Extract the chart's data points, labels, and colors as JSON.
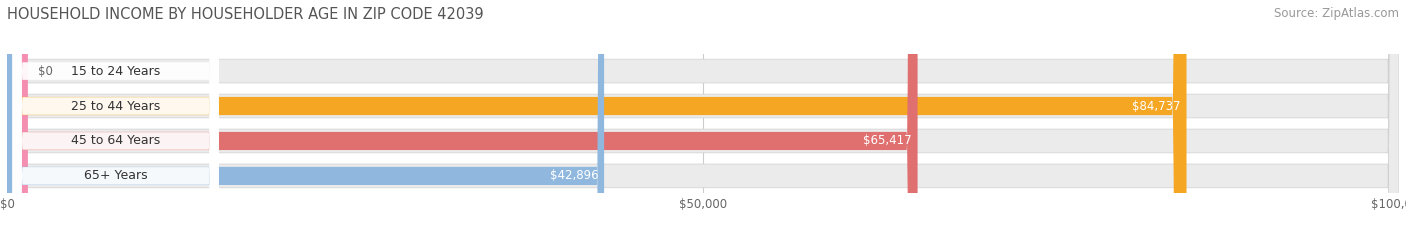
{
  "title": "HOUSEHOLD INCOME BY HOUSEHOLDER AGE IN ZIP CODE 42039",
  "source": "Source: ZipAtlas.com",
  "categories": [
    "15 to 24 Years",
    "25 to 44 Years",
    "45 to 64 Years",
    "65+ Years"
  ],
  "values": [
    0,
    84737,
    65417,
    42896
  ],
  "bar_colors": [
    "#f48fb1",
    "#f5a623",
    "#e07070",
    "#90b8df"
  ],
  "track_color": "#ebebeb",
  "xlim": [
    0,
    100000
  ],
  "xtick_labels": [
    "$0",
    "$50,000",
    "$100,000"
  ],
  "value_labels": [
    "$0",
    "$84,737",
    "$65,417",
    "$42,896"
  ],
  "bg_color": "#ffffff",
  "title_fontsize": 10.5,
  "source_fontsize": 8.5,
  "label_fontsize": 9,
  "value_fontsize": 8.5
}
